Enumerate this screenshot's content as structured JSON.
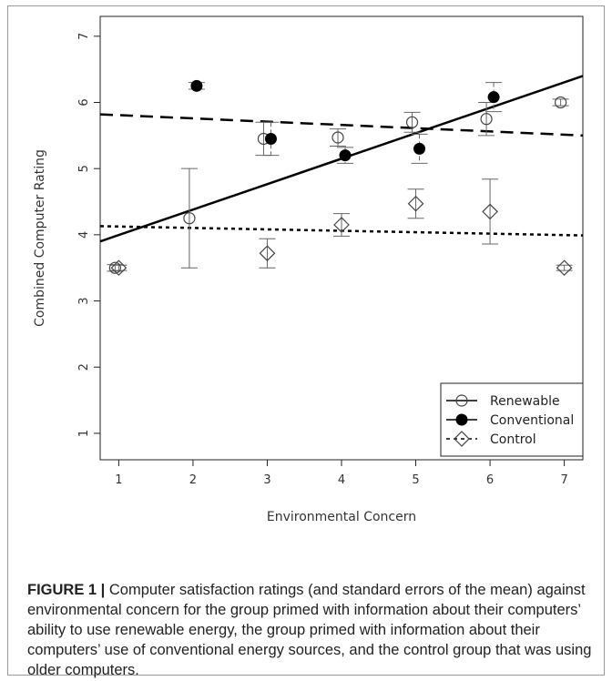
{
  "chart_data": {
    "type": "scatter",
    "xlabel": "Environmental Concern",
    "ylabel": "Combined Computer Rating",
    "xlim": [
      0.75,
      7.25
    ],
    "ylim": [
      0.6,
      7.3
    ],
    "x_ticks": [
      "1",
      "2",
      "3",
      "4",
      "5",
      "6",
      "7"
    ],
    "y_ticks": [
      "1",
      "2",
      "3",
      "4",
      "5",
      "6",
      "7"
    ],
    "grid": false,
    "legend_position": "bottom-right",
    "series": [
      {
        "name": "Renewable",
        "marker": "open-circle",
        "line_style": "solid",
        "points": [
          {
            "x": 1,
            "y": 3.5,
            "se": 0.05
          },
          {
            "x": 2,
            "y": 4.25,
            "se": 0.75
          },
          {
            "x": 3,
            "y": 5.45,
            "se": 0.25
          },
          {
            "x": 4,
            "y": 5.47,
            "se": 0.13
          },
          {
            "x": 5,
            "y": 5.7,
            "se": 0.15
          },
          {
            "x": 6,
            "y": 5.75,
            "se": 0.25
          },
          {
            "x": 7,
            "y": 6.0,
            "se": 0.05
          }
        ],
        "fit": {
          "y_at_xmin": 3.9,
          "y_at_xmax": 6.4
        }
      },
      {
        "name": "Conventional",
        "marker": "filled-circle",
        "line_style": "dashed",
        "points": [
          {
            "x": 2,
            "y": 6.25,
            "se": 0.05
          },
          {
            "x": 3,
            "y": 5.45,
            "se": 0.25
          },
          {
            "x": 4,
            "y": 5.2,
            "se": 0.12
          },
          {
            "x": 5,
            "y": 5.3,
            "se": 0.22
          },
          {
            "x": 6,
            "y": 6.08,
            "se": 0.22
          }
        ],
        "fit": {
          "y_at_xmin": 5.82,
          "y_at_xmax": 5.5
        }
      },
      {
        "name": "Control",
        "marker": "open-diamond",
        "line_style": "dotted",
        "points": [
          {
            "x": 1,
            "y": 3.5,
            "se": 0.04
          },
          {
            "x": 3,
            "y": 3.72,
            "se": 0.22
          },
          {
            "x": 4,
            "y": 4.15,
            "se": 0.17
          },
          {
            "x": 5,
            "y": 4.47,
            "se": 0.22
          },
          {
            "x": 6,
            "y": 4.35,
            "se": 0.49
          },
          {
            "x": 7,
            "y": 3.5,
            "se": 0.04
          }
        ],
        "fit": {
          "y_at_xmin": 4.13,
          "y_at_xmax": 3.99
        }
      }
    ]
  },
  "caption": {
    "lead": "FIGURE 1 |",
    "text": " Computer satisfaction ratings (and standard errors of the mean) against environmental concern for the group primed with information about their computers’ ability to use renewable energy, the group primed with information about their computers’ use of conventional energy sources, and the control group that was using older computers."
  }
}
